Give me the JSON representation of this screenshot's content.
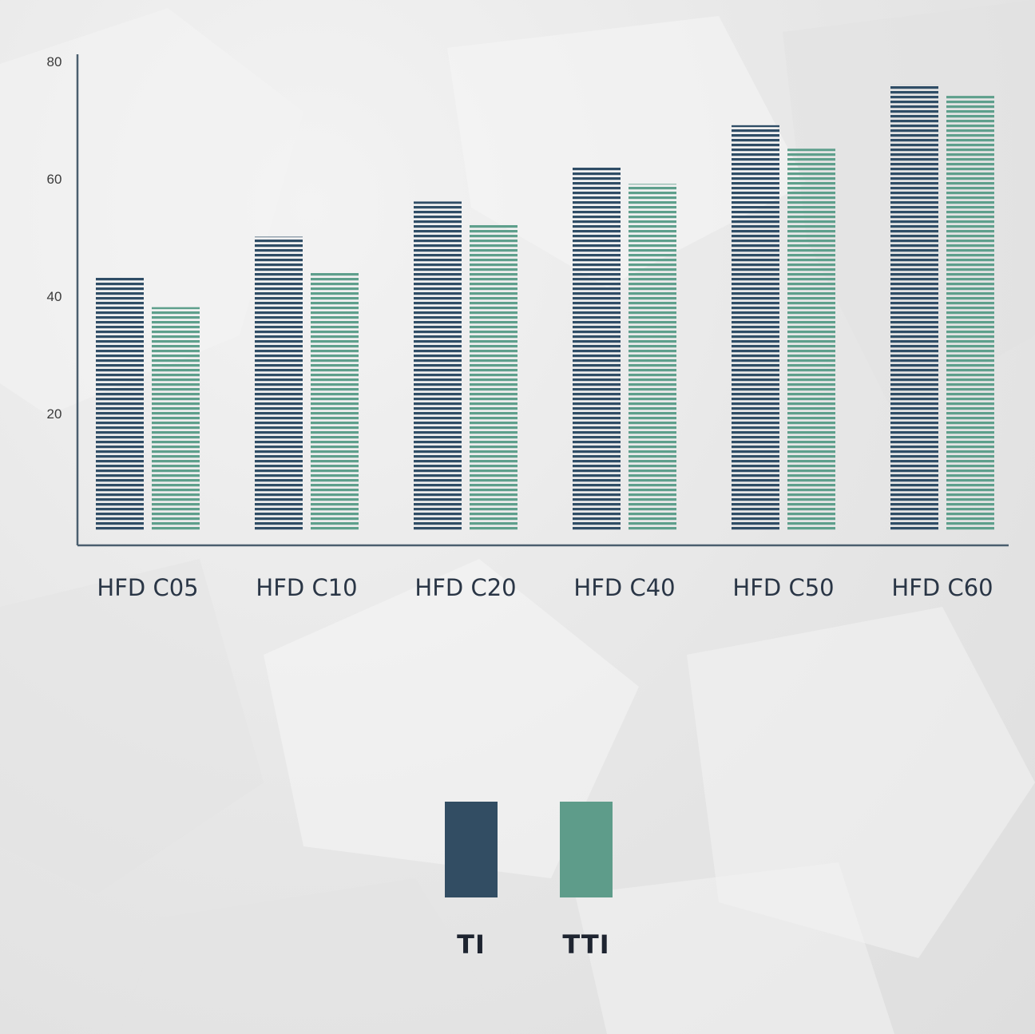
{
  "chart_data": {
    "type": "bar",
    "categories": [
      "HFD C05",
      "HFD C10",
      "HFD C20",
      "HFD  C40",
      "HFD C50",
      "HFD C60"
    ],
    "series": [
      {
        "name": "TI",
        "values": [
          43,
          50,
          56,
          62,
          69,
          76
        ]
      },
      {
        "name": "TTI",
        "values": [
          38,
          44,
          52,
          59,
          65,
          74
        ]
      }
    ],
    "yticks": [
      "20",
      "40",
      "60",
      "80"
    ],
    "ylim": [
      0,
      80
    ],
    "title": "",
    "xlabel": "",
    "ylabel": "",
    "grid": false,
    "legend_position": "bottom-center",
    "bar_pattern": "horizontal-stripes"
  },
  "colors": {
    "TI": "#2f4d66",
    "TTI": "#5e9f8c",
    "axis": "#4a5e6e",
    "tick_label": "#3a3a3a",
    "category_label": "#2a3646"
  },
  "legend": {
    "items": [
      {
        "label": "TI",
        "color": "#324d63"
      },
      {
        "label": "TTI",
        "color": "#5e9c8a"
      }
    ]
  }
}
